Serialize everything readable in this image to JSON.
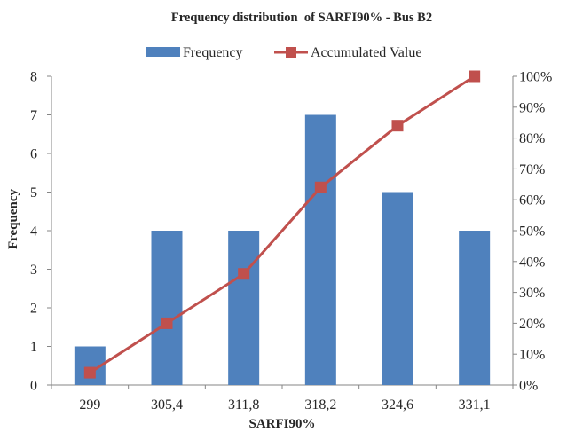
{
  "chart_data": {
    "type": "bar",
    "title": "Frequency distribution  of SARFI90% - Bus B2",
    "xlabel": "SARFI90%",
    "ylabel": "Frequency",
    "categories": [
      "299",
      "305,4",
      "311,8",
      "318,2",
      "324,6",
      "331,1"
    ],
    "series": [
      {
        "name": "Frequency",
        "type": "bar",
        "axis": "left",
        "color": "#4F81BD",
        "values": [
          1,
          4,
          4,
          7,
          5,
          4
        ]
      },
      {
        "name": "Accumulated Value",
        "type": "line",
        "axis": "right",
        "color": "#C0504D",
        "marker": "square",
        "values": [
          4,
          20,
          36,
          64,
          84,
          100
        ]
      }
    ],
    "ylim": [
      0,
      8
    ],
    "y_ticks": [
      "0",
      "1",
      "2",
      "3",
      "4",
      "5",
      "6",
      "7",
      "8"
    ],
    "y2lim": [
      0,
      100
    ],
    "y2_ticks": [
      "0%",
      "10%",
      "20%",
      "30%",
      "40%",
      "50%",
      "60%",
      "70%",
      "80%",
      "90%",
      "100%"
    ],
    "grid": false,
    "legend_position": "top"
  }
}
